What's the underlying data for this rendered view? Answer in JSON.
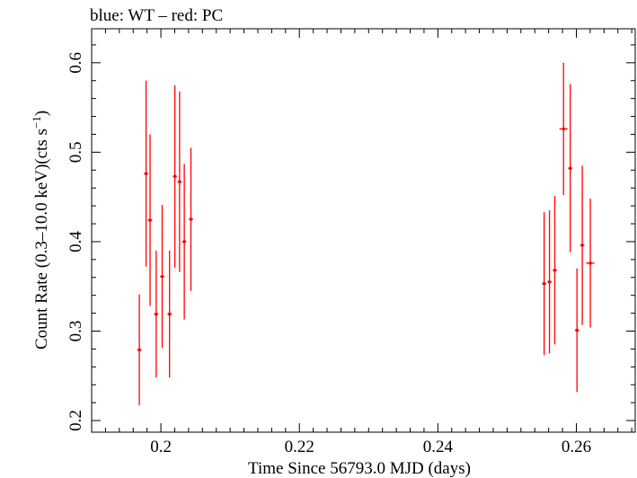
{
  "chart_data": {
    "type": "scatter",
    "title": "blue: WT – red: PC",
    "xlabel": "Time Since 56793.0 MJD (days)",
    "ylabel_main": "Count Rate (0.3–10.0 keV)(cts s",
    "ylabel_sup": "−1",
    "ylabel_close": ")",
    "xlim": [
      0.19,
      0.2685
    ],
    "ylim": [
      0.187,
      0.638
    ],
    "grid": false,
    "x_ticks": [
      0.2,
      0.22,
      0.24,
      0.26
    ],
    "x_tick_labels": [
      "0.2",
      "0.22",
      "0.24",
      "0.26"
    ],
    "y_ticks": [
      0.2,
      0.3,
      0.4,
      0.5,
      0.6
    ],
    "y_tick_labels": [
      "0.2",
      "0.3",
      "0.4",
      "0.5",
      "0.6"
    ],
    "x_minor_step": 0.002,
    "y_minor_step": 0.02,
    "series": [
      {
        "name": "PC",
        "color": "#ff0000",
        "x": [
          0.19689,
          0.19786,
          0.19844,
          0.19932,
          0.20019,
          0.20125,
          0.20202,
          0.2027,
          0.20338,
          0.20434,
          0.25535,
          0.25612,
          0.25689,
          0.25815,
          0.25912,
          0.26009,
          0.26086,
          0.26202
        ],
        "x_err": [
          0.0003,
          0.0003,
          0.0003,
          0.0003,
          0.0003,
          0.0003,
          0.0003,
          0.0003,
          0.0003,
          0.0003,
          0.0003,
          0.0003,
          0.0003,
          0.0006,
          0.0003,
          0.0003,
          0.0003,
          0.0006
        ],
        "y": [
          0.279,
          0.476,
          0.424,
          0.319,
          0.361,
          0.319,
          0.473,
          0.467,
          0.4,
          0.425,
          0.353,
          0.355,
          0.368,
          0.526,
          0.482,
          0.301,
          0.396,
          0.376
        ],
        "y_err": [
          0.062,
          0.104,
          0.096,
          0.071,
          0.08,
          0.071,
          0.102,
          0.101,
          0.087,
          0.08,
          0.08,
          0.08,
          0.083,
          0.074,
          0.094,
          0.069,
          0.089,
          0.072
        ]
      }
    ]
  }
}
